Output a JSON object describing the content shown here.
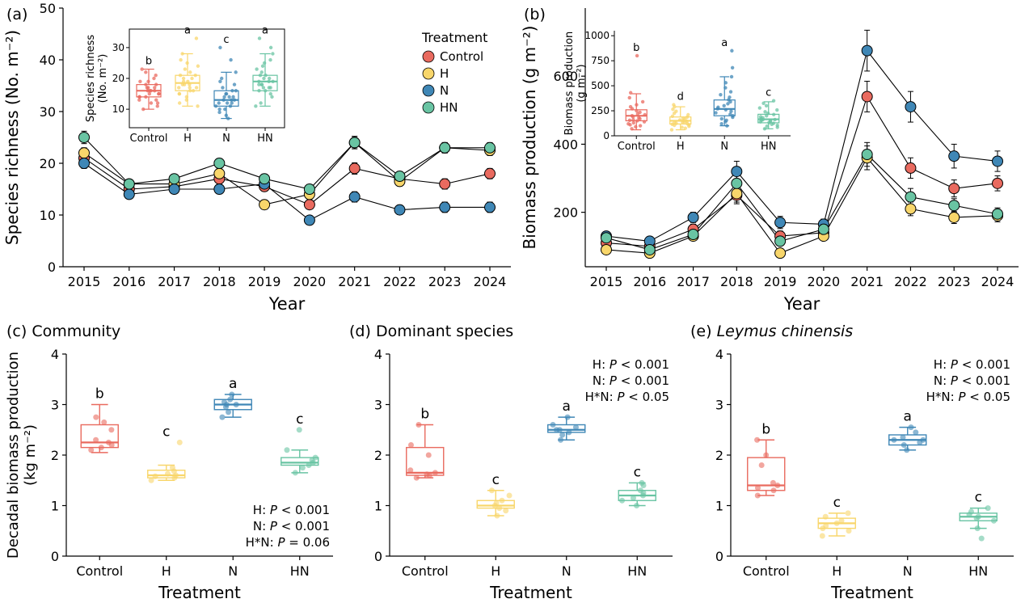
{
  "figure": {
    "background": "#ffffff",
    "colors": {
      "Control": "#E96A5F",
      "H": "#F8D66B",
      "N": "#3F87B6",
      "HN": "#69C4A3"
    },
    "point_stroke": "#000000",
    "treatments": [
      "Control",
      "H",
      "N",
      "HN"
    ]
  },
  "chart_data": [
    {
      "id": "a",
      "type": "line",
      "panel_label": "(a)",
      "xlabel": "Year",
      "ylabel": "Species richness (No. m⁻²)",
      "x": [
        2015,
        2016,
        2017,
        2018,
        2019,
        2020,
        2021,
        2022,
        2023,
        2024
      ],
      "ylim": [
        0,
        50
      ],
      "yticks": [
        0,
        10,
        20,
        30,
        40,
        50
      ],
      "series": [
        {
          "name": "Control",
          "values": [
            21,
            15,
            15.5,
            17,
            15.5,
            12,
            19,
            17,
            16,
            18
          ],
          "errors": [
            1,
            0.8,
            0.8,
            0.9,
            0.9,
            0.8,
            1.1,
            0.9,
            1,
            1
          ]
        },
        {
          "name": "H",
          "values": [
            22,
            16,
            16,
            18,
            12,
            14,
            24,
            16.5,
            23,
            22.5
          ],
          "errors": [
            1,
            0.8,
            0.8,
            0.9,
            0.9,
            0.9,
            1.2,
            0.9,
            1,
            1
          ]
        },
        {
          "name": "N",
          "values": [
            20,
            14,
            15,
            15,
            16,
            9,
            13.5,
            11,
            11.5,
            11.5
          ],
          "errors": [
            1,
            0.8,
            0.8,
            0.9,
            0.9,
            0.8,
            1,
            0.9,
            1,
            1
          ]
        },
        {
          "name": "HN",
          "values": [
            25,
            16,
            17,
            20,
            17,
            15,
            24,
            17.5,
            23,
            23
          ],
          "errors": [
            1.2,
            0.8,
            0.8,
            0.9,
            0.9,
            0.9,
            1.2,
            0.9,
            1,
            1
          ]
        }
      ],
      "legend": {
        "title": "Treatment",
        "items": [
          "Control",
          "H",
          "N",
          "HN"
        ]
      },
      "inset": {
        "type": "box",
        "ylabel_lines": [
          "Species richness",
          "(No. m⁻²)"
        ],
        "ylim": [
          4,
          36
        ],
        "yticks": [
          10,
          20,
          30
        ],
        "categories": [
          "Control",
          "H",
          "N",
          "HN"
        ],
        "letters": [
          "b",
          "a",
          "c",
          "a"
        ],
        "boxes": [
          {
            "lo": 10,
            "q1": 14,
            "median": 16,
            "q3": 18,
            "hi": 23
          },
          {
            "lo": 11,
            "q1": 16,
            "median": 18.5,
            "q3": 21,
            "hi": 28
          },
          {
            "lo": 7,
            "q1": 11,
            "median": 13,
            "q3": 16,
            "hi": 22
          },
          {
            "lo": 11,
            "q1": 16,
            "median": 19,
            "q3": 21,
            "hi": 28
          }
        ],
        "points": [
          [
            10,
            11,
            12,
            12,
            13,
            13,
            14,
            14,
            14,
            15,
            15,
            15,
            16,
            16,
            16,
            16,
            17,
            17,
            17,
            18,
            18,
            19,
            19,
            20,
            21,
            22,
            23
          ],
          [
            11,
            12,
            13,
            14,
            15,
            15,
            16,
            16,
            17,
            17,
            17,
            18,
            18,
            18,
            19,
            19,
            20,
            20,
            21,
            21,
            22,
            23,
            24,
            25,
            26,
            28,
            33
          ],
          [
            7,
            8,
            9,
            10,
            10,
            11,
            11,
            12,
            12,
            12,
            13,
            13,
            13,
            14,
            14,
            14,
            15,
            15,
            16,
            16,
            17,
            18,
            19,
            20,
            22,
            26,
            30
          ],
          [
            11,
            12,
            14,
            15,
            16,
            16,
            17,
            17,
            18,
            18,
            18,
            19,
            19,
            19,
            20,
            20,
            21,
            21,
            22,
            23,
            24,
            25,
            26,
            28,
            30,
            33,
            17
          ]
        ]
      }
    },
    {
      "id": "b",
      "type": "line",
      "panel_label": "(b)",
      "xlabel": "Year",
      "ylabel": "Biomass production (g m⁻²)",
      "x": [
        2015,
        2016,
        2017,
        2018,
        2019,
        2020,
        2021,
        2022,
        2023,
        2024
      ],
      "ylim": [
        40,
        800
      ],
      "yticks": [
        200,
        400,
        600
      ],
      "series": [
        {
          "name": "Control",
          "values": [
            110,
            100,
            150,
            250,
            130,
            140,
            540,
            330,
            270,
            285
          ],
          "errors": [
            12,
            10,
            15,
            25,
            15,
            15,
            45,
            30,
            25,
            22
          ]
        },
        {
          "name": "H",
          "values": [
            90,
            80,
            130,
            255,
            80,
            130,
            360,
            210,
            185,
            190
          ],
          "errors": [
            10,
            8,
            12,
            25,
            10,
            12,
            35,
            20,
            18,
            18
          ]
        },
        {
          "name": "N",
          "values": [
            130,
            115,
            185,
            320,
            170,
            165,
            675,
            510,
            365,
            350
          ],
          "errors": [
            12,
            10,
            15,
            30,
            18,
            15,
            60,
            45,
            35,
            30
          ]
        },
        {
          "name": "HN",
          "values": [
            125,
            90,
            135,
            285,
            115,
            150,
            370,
            245,
            220,
            195
          ],
          "errors": [
            12,
            10,
            12,
            28,
            12,
            15,
            35,
            25,
            20,
            18
          ]
        }
      ],
      "inset": {
        "type": "box",
        "ylabel_lines": [
          "Biomass production",
          "(g m⁻²)"
        ],
        "ylim": [
          0,
          1050
        ],
        "yticks": [
          0,
          250,
          500,
          750,
          1000
        ],
        "categories": [
          "Control",
          "H",
          "N",
          "HN"
        ],
        "letters": [
          "b",
          "d",
          "a",
          "c"
        ],
        "boxes": [
          {
            "lo": 60,
            "q1": 150,
            "median": 200,
            "q3": 260,
            "hi": 420
          },
          {
            "lo": 60,
            "q1": 118,
            "median": 150,
            "q3": 188,
            "hi": 290
          },
          {
            "lo": 100,
            "q1": 200,
            "median": 268,
            "q3": 358,
            "hi": 590
          },
          {
            "lo": 70,
            "q1": 130,
            "median": 165,
            "q3": 215,
            "hi": 340
          }
        ],
        "points": [
          [
            70,
            90,
            100,
            110,
            120,
            130,
            140,
            150,
            155,
            160,
            170,
            180,
            190,
            200,
            210,
            220,
            235,
            250,
            270,
            290,
            310,
            340,
            380,
            430,
            800
          ],
          [
            60,
            75,
            85,
            95,
            105,
            110,
            115,
            120,
            125,
            130,
            135,
            140,
            145,
            150,
            158,
            165,
            175,
            185,
            195,
            210,
            225,
            245,
            265,
            290,
            310
          ],
          [
            100,
            120,
            140,
            155,
            170,
            185,
            200,
            215,
            230,
            245,
            260,
            270,
            285,
            300,
            320,
            340,
            360,
            385,
            410,
            440,
            480,
            530,
            590,
            680,
            850
          ],
          [
            70,
            85,
            95,
            105,
            115,
            125,
            132,
            140,
            148,
            155,
            162,
            170,
            180,
            190,
            200,
            212,
            225,
            240,
            258,
            278,
            300,
            325,
            350,
            145,
            160
          ]
        ]
      }
    },
    {
      "id": "c",
      "type": "box",
      "panel_label": "(c)",
      "title": "Community",
      "title_italic": false,
      "xlabel": "Treatment",
      "ylabel_lines": [
        "Decadal biomass production",
        "(kg m⁻²)"
      ],
      "ylim": [
        0,
        4
      ],
      "yticks": [
        0,
        1,
        2,
        3,
        4
      ],
      "categories": [
        "Control",
        "H",
        "N",
        "HN"
      ],
      "letters": [
        "b",
        "c",
        "a",
        "c"
      ],
      "boxes": [
        {
          "lo": 2.05,
          "q1": 2.15,
          "median": 2.25,
          "q3": 2.6,
          "hi": 3.0
        },
        {
          "lo": 1.5,
          "q1": 1.55,
          "median": 1.6,
          "q3": 1.7,
          "hi": 1.8
        },
        {
          "lo": 2.75,
          "q1": 2.9,
          "median": 3.0,
          "q3": 3.1,
          "hi": 3.2
        },
        {
          "lo": 1.65,
          "q1": 1.8,
          "median": 1.85,
          "q3": 1.95,
          "hi": 2.1
        }
      ],
      "points": [
        [
          2.1,
          2.15,
          2.2,
          2.25,
          2.3,
          2.5,
          2.65,
          2.75
        ],
        [
          1.5,
          1.55,
          1.58,
          1.6,
          1.63,
          1.68,
          1.75,
          2.25
        ],
        [
          2.75,
          2.85,
          2.95,
          3.0,
          3.0,
          3.05,
          3.1,
          3.2
        ],
        [
          1.65,
          1.75,
          1.8,
          1.85,
          1.9,
          1.95,
          2.1,
          2.5
        ]
      ],
      "annotation": {
        "position": "bottom-right",
        "lines": [
          "H: P < 0.001",
          "N: P < 0.001",
          "H*N: P = 0.06"
        ]
      }
    },
    {
      "id": "d",
      "type": "box",
      "panel_label": "(d)",
      "title": "Dominant species",
      "title_italic": false,
      "xlabel": "Treatment",
      "ylim": [
        0,
        4
      ],
      "yticks": [
        0,
        1,
        2,
        3,
        4
      ],
      "categories": [
        "Control",
        "H",
        "N",
        "HN"
      ],
      "letters": [
        "b",
        "c",
        "a",
        "c"
      ],
      "boxes": [
        {
          "lo": 1.55,
          "q1": 1.6,
          "median": 1.65,
          "q3": 2.15,
          "hi": 2.6
        },
        {
          "lo": 0.8,
          "q1": 0.95,
          "median": 1.0,
          "q3": 1.1,
          "hi": 1.3
        },
        {
          "lo": 2.3,
          "q1": 2.45,
          "median": 2.5,
          "q3": 2.6,
          "hi": 2.75
        },
        {
          "lo": 1.0,
          "q1": 1.1,
          "median": 1.2,
          "q3": 1.3,
          "hi": 1.45
        }
      ],
      "points": [
        [
          1.55,
          1.6,
          1.62,
          1.65,
          1.7,
          2.0,
          2.2,
          2.6
        ],
        [
          0.8,
          0.9,
          0.95,
          1.0,
          1.05,
          1.1,
          1.2,
          1.3
        ],
        [
          2.3,
          2.4,
          2.45,
          2.5,
          2.5,
          2.55,
          2.6,
          2.75
        ],
        [
          1.0,
          1.1,
          1.15,
          1.2,
          1.25,
          1.3,
          1.4,
          1.45
        ]
      ],
      "annotation": {
        "position": "top-right",
        "lines": [
          "H: P < 0.001",
          "N: P < 0.001",
          "H*N: P < 0.05"
        ]
      }
    },
    {
      "id": "e",
      "type": "box",
      "panel_label": "(e)",
      "title": "Leymus chinensis",
      "title_italic": true,
      "xlabel": "Treatment",
      "ylim": [
        0,
        4
      ],
      "yticks": [
        0,
        1,
        2,
        3,
        4
      ],
      "categories": [
        "Control",
        "H",
        "N",
        "HN"
      ],
      "letters": [
        "b",
        "c",
        "a",
        "c"
      ],
      "boxes": [
        {
          "lo": 1.2,
          "q1": 1.3,
          "median": 1.4,
          "q3": 1.95,
          "hi": 2.3
        },
        {
          "lo": 0.4,
          "q1": 0.55,
          "median": 0.65,
          "q3": 0.75,
          "hi": 0.85
        },
        {
          "lo": 2.1,
          "q1": 2.2,
          "median": 2.3,
          "q3": 2.4,
          "hi": 2.55
        },
        {
          "lo": 0.55,
          "q1": 0.7,
          "median": 0.78,
          "q3": 0.85,
          "hi": 0.95
        }
      ],
      "points": [
        [
          1.2,
          1.3,
          1.35,
          1.4,
          1.45,
          1.8,
          2.0,
          2.3
        ],
        [
          0.4,
          0.5,
          0.55,
          0.6,
          0.65,
          0.7,
          0.78,
          0.85
        ],
        [
          2.1,
          2.2,
          2.25,
          2.3,
          2.3,
          2.35,
          2.45,
          2.55
        ],
        [
          0.35,
          0.55,
          0.7,
          0.75,
          0.78,
          0.82,
          0.88,
          0.95
        ]
      ],
      "annotation": {
        "position": "top-right",
        "lines": [
          "H: P < 0.001",
          "N: P < 0.001",
          "H*N: P < 0.05"
        ]
      }
    }
  ]
}
